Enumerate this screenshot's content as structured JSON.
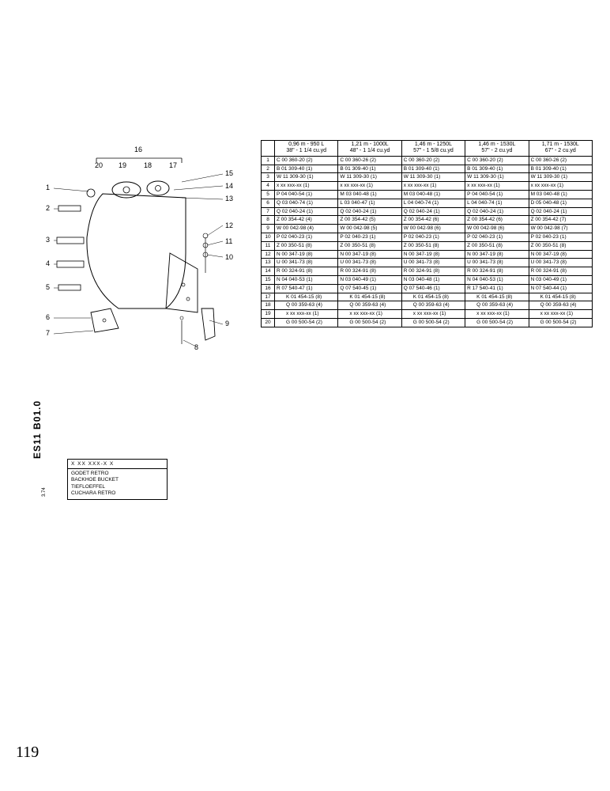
{
  "page_number_handwritten": "119",
  "doc_code": "ES11 B01.0",
  "doc_code_sub": "3.74",
  "legend": {
    "pattern": "X XX XXX-X X",
    "lines": [
      "GODET RETRO",
      "BACKHOE BUCKET",
      "TIEFLOEFFEL",
      "CUCHARA RETRO"
    ]
  },
  "diagram": {
    "top_callouts": [
      "20",
      "19",
      "18",
      "17"
    ],
    "top_brace_label": "16",
    "left_callouts": [
      "1",
      "2",
      "3",
      "4",
      "5",
      "6",
      "7"
    ],
    "right_callouts": [
      "15",
      "14",
      "13",
      "12",
      "11",
      "10",
      "9",
      "8"
    ]
  },
  "table": {
    "headers": [
      {
        "line1": "0,96 m - 950 L",
        "line2": "38\" - 1 1/4 cu.yd"
      },
      {
        "line1": "1,21 m - 1000L",
        "line2": "48\" - 1 1/4 cu.yd"
      },
      {
        "line1": "1,46 m - 1250L",
        "line2": "57\" - 1 5/8 cu.yd"
      },
      {
        "line1": "1,46 m - 1530L",
        "line2": "57\" -  2  cu.yd"
      },
      {
        "line1": "1,71 m - 1530L",
        "line2": "67\" - 2 cu.yd"
      }
    ],
    "rows": [
      {
        "n": "1",
        "c": [
          "C 00 360-20 (2)",
          "C 00 360-26 (2)",
          "C 00 360-20 (2)",
          "C 00 360-20 (2)",
          "C 00 360-26 (2)"
        ]
      },
      {
        "n": "2",
        "c": [
          "B 01 309-40 (1)",
          "B 01 309-40 (1)",
          "B 01 309-40 (1)",
          "B 01 309-40 (1)",
          "B 01 309-40 (1)"
        ]
      },
      {
        "n": "3",
        "c": [
          "W 11 309-30 (1)",
          "W 11 309-30 (1)",
          "W 11 309-30 (1)",
          "W 11 309-30 (1)",
          "W 11 309-30 (1)"
        ]
      },
      {
        "n": "4",
        "c": [
          "x xx xxx-xx (1)",
          "x xx xxx-xx (1)",
          "x xx xxx-xx (1)",
          "x xx xxx-xx (1)",
          "x xx xxx-xx (1)"
        ]
      },
      {
        "n": "5",
        "c": [
          "P 04 040-54 (1)",
          "M 03 040-48 (1)",
          "M 03 040-48 (1)",
          "P 04 040-54 (1)",
          "M 03 040-48 (1)"
        ]
      },
      {
        "n": "6",
        "c": [
          "Q 03 040-74 (1)",
          "L 03 040-47 (1)",
          "L 04 040-74 (1)",
          "L 04 040-74 (1)",
          "D 05 040-48 (1)"
        ]
      },
      {
        "n": "7",
        "c": [
          "Q 02 040-24 (1)",
          "Q 02 040-24 (1)",
          "Q 02 040-24 (1)",
          "Q 02 040-24 (1)",
          "Q 02 040-24 (1)"
        ]
      },
      {
        "n": "8",
        "c": [
          "Z 00 354-42 (4)",
          "Z 00 354-42 (5)",
          "Z 00 354-42 (6)",
          "Z 00 354-42 (6)",
          "Z 00 354-42 (7)"
        ]
      },
      {
        "n": "9",
        "c": [
          "W 00 042-98 (4)",
          "W 00 042-98 (5)",
          "W 00 042-98 (6)",
          "W 00 042-98 (6)",
          "W 00 042-98 (7)"
        ]
      },
      {
        "n": "10",
        "c": [
          "P 02 040-23 (1)",
          "P 02 040-23 (1)",
          "P 02 040-23 (1)",
          "P 02 040-23 (1)",
          "P 02 040-23 (1)"
        ]
      },
      {
        "n": "11",
        "c": [
          "Z 00 350-51 (8)",
          "Z 00 350-51 (8)",
          "Z 00 350-51 (8)",
          "Z 00 350-51 (8)",
          "Z 00 350-51 (8)"
        ]
      },
      {
        "n": "12",
        "c": [
          "N 00 347-19 (8)",
          "N 00 347-19 (8)",
          "N 00 347-19 (8)",
          "N 00 347-19 (8)",
          "N 00 347-19 (8)"
        ]
      },
      {
        "n": "13",
        "c": [
          "U 00 341-73 (8)",
          "U 00 341-73 (8)",
          "U 00 341-73 (8)",
          "U 00 341-73 (8)",
          "U 00 341-73 (8)"
        ]
      },
      {
        "n": "14",
        "c": [
          "R 00 324-91 (8)",
          "R 00 324-91 (8)",
          "R 00 324-91 (8)",
          "R 00 324-91 (8)",
          "R 00 324-91 (8)"
        ]
      },
      {
        "n": "15",
        "c": [
          "N 04 040-53 (1)",
          "N 03 040-49 (1)",
          "N 03 040-48 (1)",
          "N 04 040-53 (1)",
          "N 03 040-49 (1)"
        ]
      },
      {
        "n": "16",
        "c": [
          "R 07 540-47 (1)",
          "Q 07 540-45 (1)",
          "Q 07 540-46 (1)",
          "R 17 540-41 (1)",
          "N 07 540-44 (1)"
        ]
      },
      {
        "n": "17",
        "c": [
          "K 01 454-15 (8)",
          "K 01 454-15 (8)",
          "K 01 454-15 (8)",
          "K 01 454-15 (8)",
          "K 01 454-15 (8)"
        ],
        "indent": true
      },
      {
        "n": "18",
        "c": [
          "Q 00 359-63 (4)",
          "Q 00 359-63 (4)",
          "Q 00 359-63 (4)",
          "Q 00 359-63 (4)",
          "Q 00 359-63 (4)"
        ],
        "indent": true
      },
      {
        "n": "19",
        "c": [
          "x xx xxx-xx (1)",
          "x xx xxx-xx (1)",
          "x xx xxx-xx (1)",
          "x xx xxx-xx (1)",
          "x xx xxx-xx (1)"
        ],
        "indent": true
      },
      {
        "n": "20",
        "c": [
          "G 00 500-54 (2)",
          "G 00 500-54 (2)",
          "G 00 500-54 (2)",
          "G 00 500-54 (2)",
          "G 00 500-54 (2)"
        ],
        "indent": true
      }
    ]
  }
}
